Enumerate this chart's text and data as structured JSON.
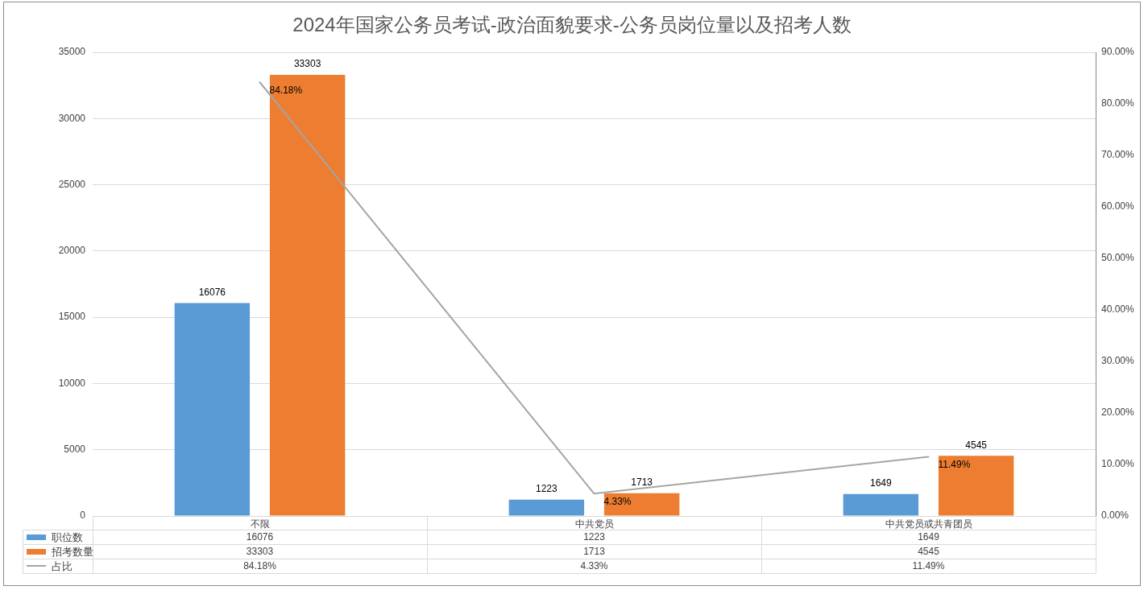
{
  "chart_data": {
    "type": "bar",
    "title": "2024年国家公务员考试-政治面貌要求-公务员岗位量以及招考人数",
    "categories": [
      "不限",
      "中共党员",
      "中共党员或共青团员"
    ],
    "series": [
      {
        "name": "职位数",
        "color": "#5b9bd5",
        "values": [
          16076,
          1223,
          1649
        ],
        "value_labels": [
          "16076",
          "1223",
          "1649"
        ]
      },
      {
        "name": "招考数量",
        "color": "#ed7d31",
        "values": [
          33303,
          1713,
          4545
        ],
        "value_labels": [
          "33303",
          "1713",
          "4545"
        ]
      },
      {
        "name": "占比",
        "type": "line",
        "axis": "y2",
        "color": "#a5a5a5",
        "values": [
          84.18,
          4.33,
          11.49
        ],
        "value_labels": [
          "84.18%",
          "4.33%",
          "11.49%"
        ]
      }
    ],
    "ylim": [
      0,
      35000
    ],
    "yticks": [
      0,
      5000,
      10000,
      15000,
      20000,
      25000,
      30000,
      35000
    ],
    "y2lim": [
      0,
      90
    ],
    "y2ticks": [
      {
        "value": 0,
        "label": "0.00%"
      },
      {
        "value": 10,
        "label": "10.00%"
      },
      {
        "value": 20,
        "label": "20.00%"
      },
      {
        "value": 30,
        "label": "30.00%"
      },
      {
        "value": 40,
        "label": "40.00%"
      },
      {
        "value": 50,
        "label": "50.00%"
      },
      {
        "value": 60,
        "label": "60.00%"
      },
      {
        "value": 70,
        "label": "70.00%"
      },
      {
        "value": 80,
        "label": "80.00%"
      },
      {
        "value": 90,
        "label": "90.00%"
      }
    ],
    "grid": "y",
    "legend": "bottom",
    "data_labels": true,
    "marker": "none"
  }
}
